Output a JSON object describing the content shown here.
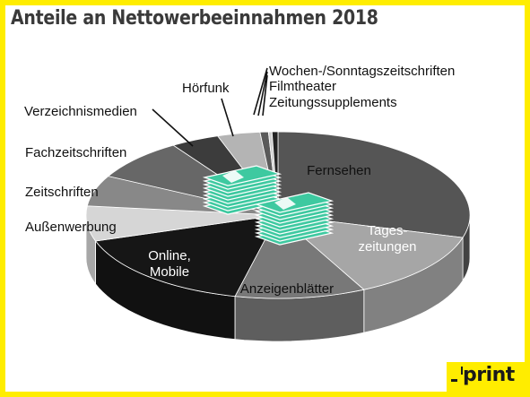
{
  "title": "Anteile an Nettowerbeeinnahmen 2018",
  "logo": "print",
  "chart_data": {
    "type": "pie",
    "title": "Anteile an Nettowerbeeinnahmen 2018",
    "note": "3D pie chart without printed values; shares estimated from slice sizes",
    "slices": [
      {
        "label": "Fernsehen",
        "value": 29.4,
        "color": "#555555"
      },
      {
        "label": "Tageszeitungen",
        "value": 13.3,
        "color": "#a6a6a6"
      },
      {
        "label": "Anzeigenblätter",
        "value": 11.0,
        "color": "#787878"
      },
      {
        "label": "Online, Mobile",
        "value": 16.4,
        "color": "#161616"
      },
      {
        "label": "Außenwerbung",
        "value": 6.8,
        "color": "#d6d6d6"
      },
      {
        "label": "Zeitschriften",
        "value": 6.0,
        "color": "#888888"
      },
      {
        "label": "Fachzeitschriften",
        "value": 8.1,
        "color": "#676767"
      },
      {
        "label": "Verzeichnismedien",
        "value": 4.1,
        "color": "#3c3c3c"
      },
      {
        "label": "Hörfunk",
        "value": 3.6,
        "color": "#b4b4b4"
      },
      {
        "label": "Wochen-/Sonntagszeitschriften",
        "value": 0.7,
        "color": "#5a5a5a"
      },
      {
        "label": "Filmtheater",
        "value": 0.3,
        "color": "#cfcfcf"
      },
      {
        "label": "Zeitungssupplements",
        "value": 0.5,
        "color": "#222222"
      }
    ],
    "labels": {
      "inside": [
        {
          "lines": [
            "Fernsehen"
          ],
          "color": "#111111"
        },
        {
          "lines": [
            "Tages-",
            "zeitungen"
          ],
          "color": "#ffffff"
        },
        {
          "lines": [
            "Anzeigenblätter"
          ],
          "color": "#111111"
        },
        {
          "lines": [
            "Online,",
            "Mobile"
          ],
          "color": "#ffffff"
        }
      ],
      "outside": [
        {
          "text": "Außenwerbung"
        },
        {
          "text": "Zeitschriften"
        },
        {
          "text": "Fachzeitschriften"
        },
        {
          "text": "Verzeichnismedien"
        },
        {
          "text": "Hörfunk"
        },
        {
          "text": "Wochen-/Sonntagszeitschriften"
        },
        {
          "text": "Filmtheater"
        },
        {
          "text": "Zeitungssupplements"
        }
      ]
    },
    "legend": "none",
    "colors": {
      "border": "#ffed00",
      "logo_bg": "#ffed00",
      "title": "#3a3a3a",
      "money": "#3ec9a0"
    }
  }
}
